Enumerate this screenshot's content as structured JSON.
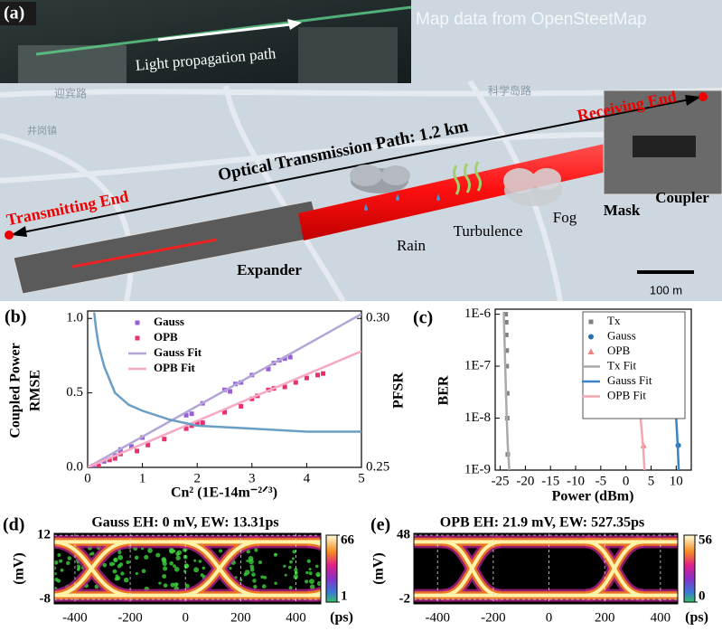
{
  "panel_a": {
    "label": "(a)",
    "inset_caption": "Light propagation path",
    "credit": "Map data from OpenSteetMap",
    "road_1": "迎宾路",
    "road_2": "科学岛路",
    "town": "井岗镇",
    "path_label": "Optical Transmission Path: 1.2 km",
    "receiving": "Receiving End",
    "transmitting": "Transmitting End",
    "rain": "Rain",
    "turbulence": "Turbulence",
    "fog": "Fog",
    "mask": "Mask",
    "coupler": "Coupler",
    "expander": "Expander",
    "scale": "100 m"
  },
  "chart_data": [
    {
      "type": "scatter",
      "label": "(b)",
      "xlabel": "Cn² (1E-14m⁻²ᐟ³)",
      "ylabel": [
        "Coupled Power",
        "RMSE"
      ],
      "y2label": "PFSR",
      "xlim": [
        0,
        5
      ],
      "xticks": [
        0,
        1,
        2,
        3,
        4,
        5
      ],
      "ylim": [
        0,
        1.05
      ],
      "yticks": [
        {
          "value": 0,
          "label": "0.0"
        },
        0.5,
        {
          "value": 1,
          "label": "1.0"
        }
      ],
      "y2lim": [
        0.25,
        0.3025
      ],
      "y2ticks": [
        0.25,
        {
          "value": 0.3,
          "label": "0.30"
        }
      ],
      "legend": "upper left",
      "series": [
        {
          "name": "Gauss",
          "color": "#9a5fd6",
          "mode": "points",
          "marker": "square",
          "x": [
            0.1,
            0.3,
            0.5,
            0.6,
            0.8,
            1.0,
            1.8,
            1.9,
            2.1,
            2.5,
            2.6,
            2.7,
            2.8,
            3.0,
            3.3,
            3.4,
            3.5,
            3.6,
            3.7
          ],
          "values": [
            0.01,
            0.04,
            0.08,
            0.12,
            0.14,
            0.2,
            0.35,
            0.36,
            0.43,
            0.52,
            0.51,
            0.56,
            0.57,
            0.62,
            0.66,
            0.7,
            0.72,
            0.73,
            0.74
          ]
        },
        {
          "name": "OPB",
          "color": "#e8306e",
          "mode": "points",
          "marker": "square",
          "x": [
            0.2,
            0.4,
            0.5,
            0.6,
            0.9,
            1.1,
            1.4,
            1.8,
            1.9,
            2.0,
            2.1,
            2.5,
            2.8,
            3.0,
            3.1,
            3.3,
            3.4,
            3.6,
            3.8,
            4.0,
            4.2,
            4.3
          ],
          "values": [
            0.01,
            0.05,
            0.06,
            0.09,
            0.11,
            0.15,
            0.19,
            0.26,
            0.28,
            0.3,
            0.3,
            0.37,
            0.41,
            0.46,
            0.48,
            0.52,
            0.53,
            0.54,
            0.57,
            0.6,
            0.62,
            0.63
          ]
        },
        {
          "name": "Gauss Fit",
          "color": "#b3a6d6",
          "mode": "line",
          "x": [
            0,
            5
          ],
          "values": [
            0,
            1.03
          ]
        },
        {
          "name": "OPB Fit",
          "color": "#f7a8c4",
          "mode": "line",
          "x": [
            0,
            5
          ],
          "values": [
            0,
            0.78
          ]
        },
        {
          "color": "#6a9ec4",
          "mode": "line",
          "axis": "y2",
          "x": [
            0.12,
            0.15,
            0.2,
            0.3,
            0.5,
            0.75,
            1,
            1.5,
            2,
            3,
            4,
            5
          ],
          "values": [
            0.302,
            0.297,
            0.291,
            0.284,
            0.275,
            0.271,
            0.269,
            0.266,
            0.264,
            0.263,
            0.262,
            0.262
          ]
        }
      ]
    },
    {
      "type": "scatter",
      "label": "(c)",
      "xlabel": "Power (dBm)",
      "ylabel": [
        "BER"
      ],
      "xlim": [
        -26,
        13
      ],
      "xticks": [
        -25,
        -20,
        -15,
        -10,
        -5,
        0,
        5,
        10
      ],
      "ylog": true,
      "ylim": [
        1e-09,
        1.25e-06
      ],
      "yticks": [
        {
          "value": 1e-09,
          "label": "1E-9"
        },
        {
          "value": 1e-08,
          "label": "1E-8"
        },
        {
          "value": 1e-07,
          "label": "1E-7"
        },
        {
          "value": 1e-06,
          "label": "1E-6"
        }
      ],
      "legend": "upper right",
      "series": [
        {
          "name": "Tx",
          "color": "#808080",
          "mode": "points",
          "marker": "square",
          "x": [
            -23.9,
            -23.8,
            -23.8,
            -23.7,
            -23.7,
            -23.6,
            -23.6,
            -23.5
          ],
          "values": [
            1e-06,
            7e-07,
            4e-07,
            2e-07,
            1e-07,
            3e-08,
            1e-08,
            2e-09
          ]
        },
        {
          "name": "Gauss",
          "color": "#2a6fb0",
          "mode": "points",
          "marker": "circle",
          "x": [
            4.6,
            8.4,
            10.1,
            10.4
          ],
          "values": [
            1e-06,
            2.5e-07,
            3e-08,
            3e-09
          ]
        },
        {
          "name": "OPB",
          "color": "#f08080",
          "mode": "points",
          "marker": "triangle",
          "x": [
            0.4,
            1.5,
            2.4,
            3.5
          ],
          "values": [
            1e-06,
            3e-07,
            4e-08,
            3e-09
          ]
        },
        {
          "name": "Tx Fit",
          "color": "#aaaaaa",
          "mode": "line",
          "x": [
            -24.3,
            -24,
            -23.7,
            -23.5,
            -23.3,
            -23.2
          ],
          "values": [
            1.1e-06,
            1e-07,
            1e-08,
            3e-09,
            1.5e-09,
            1e-09
          ]
        },
        {
          "name": "Gauss Fit",
          "color": "#3b82c4",
          "mode": "line",
          "x": [
            4,
            5.5,
            7,
            8.5,
            9.5,
            10,
            10.3,
            10.5
          ],
          "values": [
            1.1e-06,
            7e-07,
            4e-07,
            2e-07,
            6e-08,
            1e-08,
            3e-09,
            1e-09
          ]
        },
        {
          "name": "OPB Fit",
          "color": "#f4a6b0",
          "mode": "line",
          "x": [
            0,
            1,
            1.8,
            2.5,
            3,
            3.4,
            3.7
          ],
          "values": [
            1.1e-06,
            5e-07,
            1.5e-07,
            3e-08,
            8e-09,
            3e-09,
            1e-09
          ]
        }
      ]
    },
    {
      "type": "eye",
      "label": "(d)",
      "title": "Gauss EH: 0 mV, EW: 13.31ps",
      "ylabel": "(mV)",
      "xunit": "(ps)",
      "xlim": [
        -475,
        490
      ],
      "xticks": [
        -400,
        -200,
        0,
        200,
        400
      ],
      "ylim": [
        -9.4,
        12.6
      ],
      "yticks": [
        -8,
        12
      ],
      "grid": true,
      "clim": [
        1,
        66
      ],
      "cticks": [
        1,
        66
      ]
    },
    {
      "type": "eye",
      "label": "(e)",
      "title": "OPB EH: 21.9 mV, EW: 527.35ps",
      "ylabel": "(mV)",
      "xunit": "(ps)",
      "xlim": [
        -485,
        462
      ],
      "xticks": [
        -400,
        -200,
        0,
        200,
        400
      ],
      "ylim": [
        -5.5,
        49.4
      ],
      "yticks": [
        -2,
        48
      ],
      "grid": true,
      "clim": [
        0,
        56
      ],
      "cticks": [
        0,
        56
      ]
    }
  ]
}
